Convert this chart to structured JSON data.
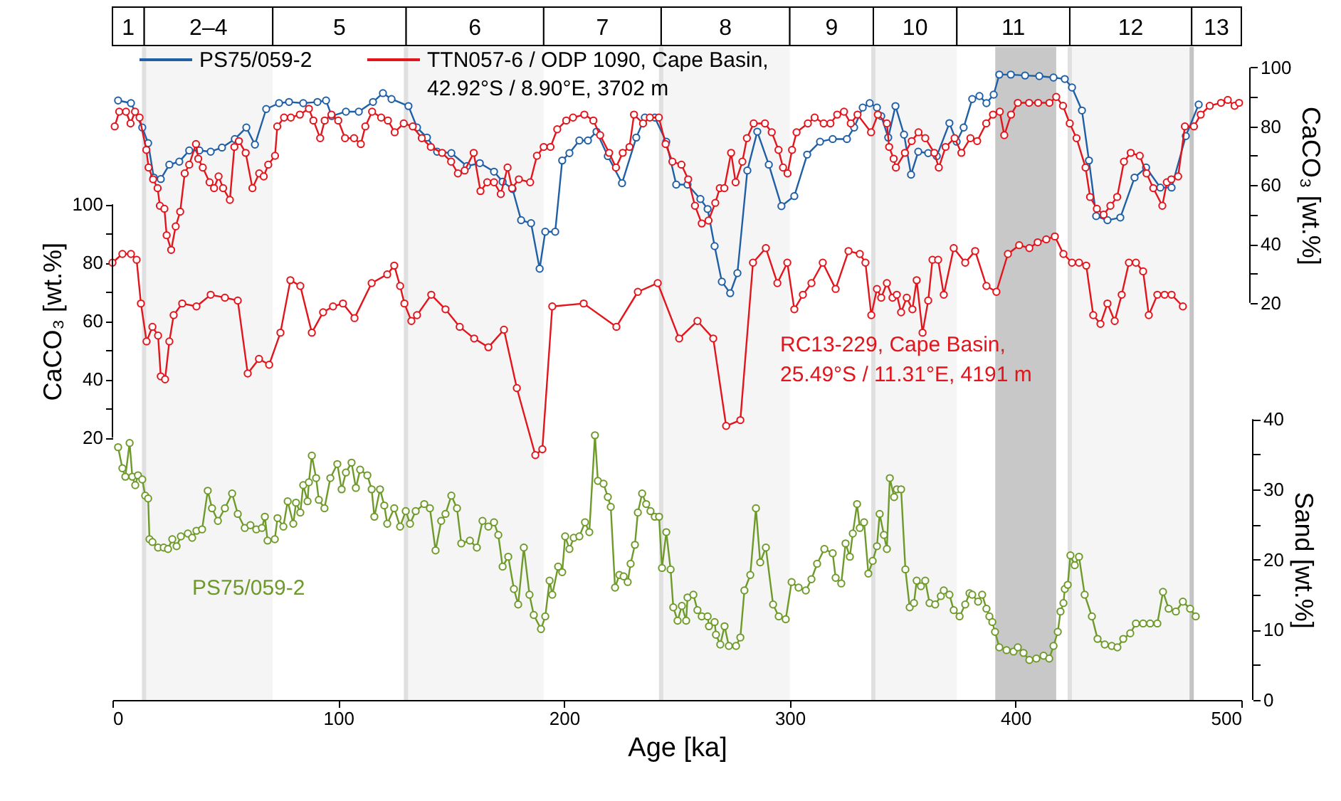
{
  "chart_data": {
    "type": "line",
    "xlabel": "Age [ka]",
    "ylabel": "CaCO₃ [wt.%]",
    "y2label": "CaCO₃ [wt.%]",
    "y3label": "Sand [wt.%]",
    "xlim": [
      0,
      500
    ],
    "xticks": [
      0,
      100,
      200,
      300,
      400,
      500
    ],
    "ylim": [
      -70,
      154
    ],
    "yticks": [
      20,
      {
        "value": 30,
        "label": null
      },
      40,
      {
        "value": 50,
        "label": null
      },
      60,
      {
        "value": 70,
        "label": null
      },
      80,
      {
        "value": 90,
        "label": null
      },
      100
    ],
    "y2lim": [
      -115,
      107
    ],
    "y2ticks": [
      20,
      {
        "value": 30,
        "label": null
      },
      40,
      {
        "value": 50,
        "label": null
      },
      60,
      {
        "value": 70,
        "label": null
      },
      80,
      {
        "value": 90,
        "label": null
      },
      100
    ],
    "y3lim": [
      0,
      93
    ],
    "y3ticks": [
      0,
      {
        "value": 5,
        "label": null
      },
      10,
      {
        "value": 15,
        "label": null
      },
      20,
      {
        "value": 25,
        "label": null
      },
      30,
      {
        "value": 35,
        "label": null
      },
      40
    ],
    "annotations": [
      "1",
      "5",
      "7",
      "9",
      "11",
      "13"
    ],
    "marker": "circle",
    "legend": "top left",
    "bands": [
      {
        "axis": "x",
        "from": 14,
        "to": 71,
        "label": "2–4",
        "color": "#f5f5f5"
      },
      {
        "axis": "x",
        "from": 130,
        "to": 191,
        "label": "6",
        "color": "#f5f5f5"
      },
      {
        "axis": "x",
        "from": 243,
        "to": 300,
        "label": "8",
        "color": "#f5f5f5"
      },
      {
        "axis": "x",
        "from": 337,
        "to": 374,
        "label": "10",
        "color": "#f5f5f5"
      },
      {
        "axis": "x",
        "from": 424,
        "to": 478,
        "label": "12",
        "color": "#f5f5f5"
      },
      {
        "axis": "x",
        "from": 391,
        "to": 418,
        "color": "#c8c8c8"
      }
    ],
    "ref_lines": [
      {
        "axis": "x",
        "value": 14,
        "color": "#e0e0e0"
      },
      {
        "axis": "x",
        "value": 130,
        "color": "#e0e0e0"
      },
      {
        "axis": "x",
        "value": 243,
        "color": "#e0e0e0"
      },
      {
        "axis": "x",
        "value": 337,
        "color": "#e0e0e0"
      },
      {
        "axis": "x",
        "value": 424,
        "color": "#e0e0e0"
      },
      {
        "axis": "x",
        "value": 478,
        "color": "#c4c4c4"
      }
    ],
    "series": [
      {
        "name": "PS75/059-2",
        "color": "#1f5fa6",
        "axis": "y2",
        "x": [
          2.5,
          8.2,
          13.2,
          15.8,
          18.3,
          21.4,
          25.2,
          29.6,
          34.0,
          38.5,
          43.5,
          48.5,
          54.2,
          59.3,
          63.1,
          68.1,
          73.8,
          78.2,
          84.5,
          90.8,
          94.6,
          97.1,
          103.4,
          109.1,
          115.4,
          119.8,
          123.6,
          131.1,
          134.9,
          139.3,
          143.8,
          150.1,
          157.0,
          162.7,
          169.0,
          172.8,
          177.2,
          181.0,
          185.4,
          189.2,
          191.7,
          196.1,
          199.2,
          202.4,
          206.8,
          210.6,
          214.4,
          219.4,
          225.7,
          232.0,
          235.8,
          240.2,
          245.3,
          249.7,
          254.7,
          260.4,
          263.6,
          266.7,
          269.9,
          273.6,
          276.8,
          281.2,
          285.6,
          290.7,
          296.3,
          302.0,
          307.7,
          313.4,
          319.0,
          325.3,
          328.5,
          332.3,
          335.4,
          338.6,
          340.5,
          343.6,
          346.8,
          350.6,
          353.7,
          356.9,
          361.3,
          365.1,
          370.7,
          373.9,
          377.0,
          380.8,
          384.0,
          387.1,
          390.3,
          392.8,
          397.9,
          404.2,
          410.5,
          416.8,
          421.8,
          425.0,
          429.4,
          432.5,
          435.7,
          440.7,
          446.4,
          452.7,
          457.8,
          464.1,
          469.1,
          475.4,
          481.1
        ],
        "values": [
          88.8,
          87.9,
          79.6,
          74.3,
          62.6,
          62.1,
          67.0,
          68.0,
          71.8,
          71.8,
          71.4,
          72.8,
          75.7,
          79.6,
          73.8,
          85.9,
          87.9,
          88.3,
          87.9,
          88.3,
          88.8,
          83.5,
          85.0,
          85.0,
          88.3,
          91.3,
          89.3,
          86.9,
          79.6,
          76.2,
          71.4,
          70.9,
          66.5,
          67.5,
          64.6,
          61.2,
          58.7,
          48.1,
          47.1,
          31.6,
          44.2,
          44.2,
          68.4,
          70.9,
          75.2,
          75.2,
          78.2,
          69.9,
          60.7,
          76.2,
          83.0,
          83.0,
          74.8,
          60.2,
          60.2,
          55.3,
          51.9,
          39.3,
          27.2,
          23.3,
          30.1,
          65.0,
          78.2,
          67.0,
          52.9,
          56.3,
          70.4,
          74.8,
          75.7,
          75.7,
          79.6,
          86.4,
          87.9,
          86.4,
          83.5,
          76.2,
          86.9,
          77.2,
          63.6,
          71.4,
          70.9,
          69.9,
          81.1,
          74.8,
          79.6,
          89.3,
          90.3,
          87.9,
          90.8,
          97.6,
          97.6,
          97.3,
          97.1,
          96.6,
          96.1,
          93.2,
          85.4,
          68.4,
          49.5,
          48.1,
          49.0,
          62.6,
          66.0,
          59.2,
          59.2,
          76.7,
          87.4
        ]
      },
      {
        "name": "TTN057-6 / ODP 1090, Cape Basin, 42.92°S / 8.90°E, 3702 m",
        "color": "#e3141b",
        "axis": "y2",
        "x": [
          1,
          3,
          6,
          8,
          10,
          12,
          15,
          16,
          18,
          20,
          21,
          23,
          24,
          26,
          28,
          30,
          32,
          34,
          37,
          38,
          40,
          43,
          45,
          47,
          49,
          52,
          54,
          56,
          59,
          62,
          65,
          67,
          69,
          72,
          73,
          76,
          79,
          83,
          87,
          89,
          92,
          94,
          97,
          100,
          103,
          107,
          110,
          112,
          115,
          119,
          122,
          125,
          129,
          133,
          137,
          141,
          146,
          150,
          153,
          156,
          160,
          163,
          166,
          169,
          172,
          175,
          177,
          180,
          185,
          188,
          191,
          194,
          197,
          201,
          204,
          209,
          213,
          216,
          220,
          223,
          226,
          229,
          231,
          235,
          238,
          242,
          245,
          248,
          252,
          255,
          258,
          261,
          264,
          267,
          269,
          271,
          274,
          276,
          279,
          281,
          284,
          289,
          292,
          295,
          297,
          299,
          301,
          303,
          308,
          311,
          315,
          318,
          321,
          324,
          327,
          330,
          336,
          339,
          343,
          344,
          346,
          347,
          351,
          354,
          357,
          360,
          364,
          366,
          369,
          373,
          376,
          380,
          383,
          387,
          390,
          393,
          395,
          398,
          401,
          406,
          410,
          415,
          418,
          421,
          424,
          427,
          431,
          433,
          436,
          439,
          442,
          445,
          448,
          451,
          455,
          458,
          461,
          465,
          467,
          469,
          472,
          475,
          479,
          482,
          486,
          491,
          494,
          497,
          499
        ],
        "values": [
          80,
          85,
          85,
          81,
          85,
          83,
          72,
          66,
          62,
          59,
          53,
          52,
          43,
          38,
          46,
          51,
          64,
          67,
          74,
          69,
          66,
          61,
          59,
          63,
          59,
          55,
          73,
          75,
          71,
          59,
          64,
          63,
          67,
          70,
          80,
          83,
          83,
          84,
          86,
          82,
          76,
          82,
          84,
          82,
          76,
          76,
          74,
          80,
          85,
          83,
          82,
          78,
          81,
          80,
          76,
          73,
          71,
          68,
          64,
          65,
          71,
          58,
          61,
          61,
          57,
          66,
          59,
          62,
          61,
          70,
          73,
          73,
          79,
          82,
          83,
          84,
          82,
          77,
          71,
          66,
          71,
          73,
          84,
          81,
          83,
          83,
          74,
          68,
          67,
          62,
          53,
          47,
          48,
          54,
          59,
          59,
          71,
          61,
          68,
          76,
          81,
          81,
          78,
          72,
          66,
          64,
          72,
          78,
          81,
          83,
          81,
          81,
          84,
          85,
          81,
          84,
          78,
          84,
          81,
          73,
          69,
          66,
          71,
          75,
          78,
          76,
          71,
          66,
          73,
          76,
          71,
          76,
          75,
          81,
          84,
          85,
          77,
          84,
          88,
          88,
          88,
          88,
          90,
          87,
          81,
          76,
          66,
          56,
          52,
          50,
          53,
          56,
          68,
          71,
          70,
          64,
          59,
          53,
          61,
          62,
          63,
          80,
          80,
          84,
          87,
          88,
          89,
          87,
          88
        ]
      },
      {
        "name": "RC13-229, Cape Basin, 25.49°S / 11.31°E,  4191 m",
        "color": "#e3141b",
        "axis": "y",
        "x": [
          0,
          4.4,
          8.2,
          10.7,
          12.6,
          15.1,
          17.7,
          20.2,
          21.4,
          23.3,
          25.2,
          27.1,
          30.9,
          37.2,
          43.5,
          49.8,
          55.5,
          59.9,
          64.9,
          69.4,
          74.4,
          78.8,
          83.2,
          88.3,
          93.3,
          97.7,
          102.1,
          107.2,
          114.8,
          121.7,
          124.8,
          127.4,
          129.3,
          132.4,
          134.9,
          141.2,
          147.5,
          153.8,
          160.2,
          166.5,
          173.4,
          179.1,
          187.3,
          190.4,
          194.8,
          208.7,
          223.2,
          232.7,
          241.5,
          251.0,
          259.1,
          266.1,
          271.8,
          278.1,
          283.7,
          289.4,
          294.5,
          298.9,
          302.0,
          305.8,
          309.6,
          314.6,
          320.3,
          326.0,
          331.0,
          333.5,
          336.1,
          338.6,
          340.5,
          343.0,
          345.5,
          347.4,
          349.3,
          351.8,
          354.3,
          356.2,
          358.8,
          361.3,
          363.2,
          365.7,
          368.2,
          372.6,
          377.7,
          382.1,
          387.1,
          391.5,
          396.6,
          401.6,
          406.1,
          409.8,
          413.6,
          417.4,
          421.2,
          425.0,
          428.1,
          431.3,
          434.4,
          437.6,
          440.7,
          443.9,
          447.0,
          450.2,
          453.3,
          456.5,
          459.0,
          462.8,
          466.0,
          469.1,
          474.1
        ],
        "values": [
          80,
          83,
          83,
          81,
          66,
          53,
          58,
          55,
          41,
          40,
          53,
          62,
          66,
          65,
          69,
          68,
          67,
          42,
          47,
          45,
          56,
          74,
          72,
          56,
          63,
          65,
          66,
          61,
          73,
          76,
          79,
          72,
          66,
          60,
          62,
          69,
          64,
          58,
          54,
          51,
          57,
          37,
          14,
          16,
          65,
          66,
          58,
          70,
          73,
          54,
          60,
          54,
          24,
          26,
          80,
          85,
          73,
          80,
          64,
          69,
          73,
          80,
          71,
          84,
          83,
          80,
          62,
          71,
          68,
          73,
          68,
          69,
          63,
          68,
          64,
          74,
          56,
          67,
          81,
          81,
          69,
          85,
          80,
          84,
          72,
          70,
          83,
          86,
          85,
          87,
          88,
          89,
          83,
          80,
          80,
          79,
          62,
          59,
          66,
          60,
          69,
          80,
          80,
          77,
          62,
          69,
          69,
          69,
          65
        ]
      },
      {
        "name": "PS75/059-2",
        "color": "#6e9a2a",
        "axis": "y3",
        "x": [
          2.5,
          4.4,
          5.7,
          7.6,
          8.8,
          10.1,
          11.3,
          13.2,
          14.5,
          15.8,
          16.4,
          17.7,
          20.2,
          22.7,
          24.6,
          26.5,
          28.4,
          30.3,
          33.4,
          35.3,
          37.2,
          39.7,
          42.2,
          44.1,
          46.7,
          49.8,
          53.0,
          55.5,
          58.6,
          61.1,
          63.7,
          66.2,
          67.5,
          68.7,
          71.9,
          73.1,
          75.7,
          77.6,
          80.1,
          81.3,
          83.2,
          84.5,
          86.4,
          87.0,
          88.3,
          90.2,
          91.4,
          93.9,
          96.5,
          99.6,
          101.5,
          103.4,
          105.9,
          107.8,
          109.7,
          112.9,
          114.8,
          116.0,
          118.5,
          120.4,
          121.7,
          124.8,
          127.4,
          129.9,
          131.8,
          134.3,
          138.1,
          140.6,
          143.1,
          145.6,
          147.5,
          150.1,
          152.6,
          154.5,
          158.3,
          161.4,
          163.9,
          166.5,
          169.0,
          170.9,
          172.8,
          175.3,
          177.8,
          179.7,
          182.2,
          184.7,
          186.6,
          189.8,
          191.7,
          193.6,
          194.8,
          197.4,
          199.2,
          200.5,
          202.4,
          204.3,
          206.8,
          209.3,
          211.2,
          213.7,
          215.0,
          217.5,
          219.4,
          220.7,
          222.6,
          224.5,
          226.4,
          228.2,
          229.5,
          231.4,
          232.7,
          234.6,
          236.4,
          238.3,
          240.2,
          242.1,
          243.4,
          245.3,
          247.2,
          248.4,
          250.3,
          252.2,
          254.1,
          254.7,
          257.3,
          259.1,
          261.0,
          263.6,
          264.2,
          266.7,
          267.3,
          269.2,
          271.1,
          273.0,
          276.2,
          278.1,
          279.9,
          282.5,
          285.0,
          286.9,
          289.4,
          292.6,
          295.1,
          298.2,
          300.8,
          303.9,
          307.1,
          309.6,
          312.1,
          315.3,
          319.0,
          320.3,
          322.8,
          324.7,
          326.6,
          327.9,
          329.8,
          331.0,
          332.9,
          334.8,
          336.7,
          338.6,
          339.8,
          341.7,
          343.0,
          344.3,
          346.2,
          347.4,
          349.3,
          351.2,
          353.1,
          355.0,
          356.2,
          358.1,
          360.0,
          361.9,
          364.4,
          366.9,
          368.2,
          370.7,
          372.6,
          375.2,
          377.7,
          379.6,
          380.8,
          383.4,
          385.2,
          387.1,
          388.4,
          389.7,
          390.9,
          392.8,
          396.0,
          399.1,
          401.0,
          403.5,
          406.1,
          409.2,
          412.4,
          414.9,
          416.8,
          418.7,
          419.9,
          421.2,
          421.8,
          423.1,
          424.3,
          426.2,
          428.1,
          430.6,
          433.8,
          436.3,
          439.5,
          442.6,
          445.1,
          447.7,
          450.8,
          453.3,
          456.5,
          459.6,
          462.8,
          465.3,
          467.8,
          471.0,
          474.1,
          477.3,
          479.8
        ],
        "values": [
          36.0,
          33.0,
          31.8,
          36.6,
          31.8,
          30.6,
          32.0,
          31.4,
          29.1,
          28.7,
          22.9,
          22.5,
          21.7,
          21.7,
          21.5,
          22.9,
          21.9,
          23.3,
          23.7,
          23.1,
          24.1,
          24.3,
          29.8,
          27.3,
          25.5,
          27.3,
          29.4,
          26.5,
          24.5,
          24.9,
          24.3,
          24.5,
          26.1,
          22.7,
          22.9,
          25.9,
          24.7,
          28.3,
          25.1,
          28.1,
          26.7,
          30.6,
          28.3,
          31.0,
          34.8,
          31.6,
          28.5,
          27.3,
          31.6,
          33.6,
          30.0,
          32.4,
          33.8,
          30.2,
          32.8,
          32.0,
          30.0,
          26.1,
          30.0,
          27.7,
          25.1,
          27.3,
          24.7,
          26.9,
          25.1,
          26.9,
          27.9,
          27.3,
          21.3,
          25.5,
          26.5,
          29.1,
          27.3,
          22.3,
          22.7,
          21.7,
          25.5,
          24.7,
          25.3,
          23.5,
          19.0,
          20.4,
          15.8,
          13.6,
          21.7,
          15.0,
          12.1,
          10.1,
          11.9,
          17.0,
          15.0,
          19.0,
          18.2,
          23.3,
          21.5,
          23.1,
          23.3,
          25.3,
          23.9,
          37.7,
          31.2,
          30.8,
          28.9,
          27.5,
          16.0,
          17.8,
          17.6,
          16.8,
          19.4,
          22.1,
          26.7,
          29.4,
          27.9,
          26.9,
          26.1,
          26.1,
          18.8,
          23.9,
          18.6,
          13.2,
          11.3,
          13.4,
          11.3,
          14.6,
          15.0,
          12.8,
          11.9,
          11.9,
          10.5,
          11.1,
          9.3,
          7.9,
          10.5,
          7.7,
          7.7,
          8.9,
          15.6,
          17.8,
          27.3,
          19.6,
          21.7,
          13.6,
          11.9,
          11.5,
          16.8,
          16.0,
          15.6,
          17.2,
          19.4,
          21.5,
          20.9,
          17.4,
          16.6,
          22.3,
          20.4,
          23.7,
          27.9,
          24.5,
          25.3,
          18.0,
          19.8,
          21.9,
          26.5,
          23.5,
          21.5,
          31.6,
          28.9,
          30.0,
          30.0,
          18.6,
          13.2,
          13.8,
          17.0,
          16.2,
          17.0,
          13.8,
          13.6,
          14.8,
          15.6,
          15.0,
          12.8,
          11.9,
          13.6,
          15.2,
          15.0,
          14.0,
          15.0,
          13.0,
          11.9,
          11.1,
          9.7,
          7.5,
          7.1,
          6.9,
          7.5,
          6.7,
          5.7,
          5.9,
          6.3,
          5.9,
          7.7,
          9.7,
          12.6,
          13.8,
          15.8,
          16.4,
          20.6,
          19.2,
          20.4,
          15.0,
          11.9,
          8.7,
          7.9,
          7.7,
          7.5,
          8.7,
          9.5,
          10.9,
          10.9,
          10.9,
          10.9,
          15.4,
          13.0,
          12.6,
          14.0,
          13.0,
          11.9
        ]
      }
    ]
  }
}
